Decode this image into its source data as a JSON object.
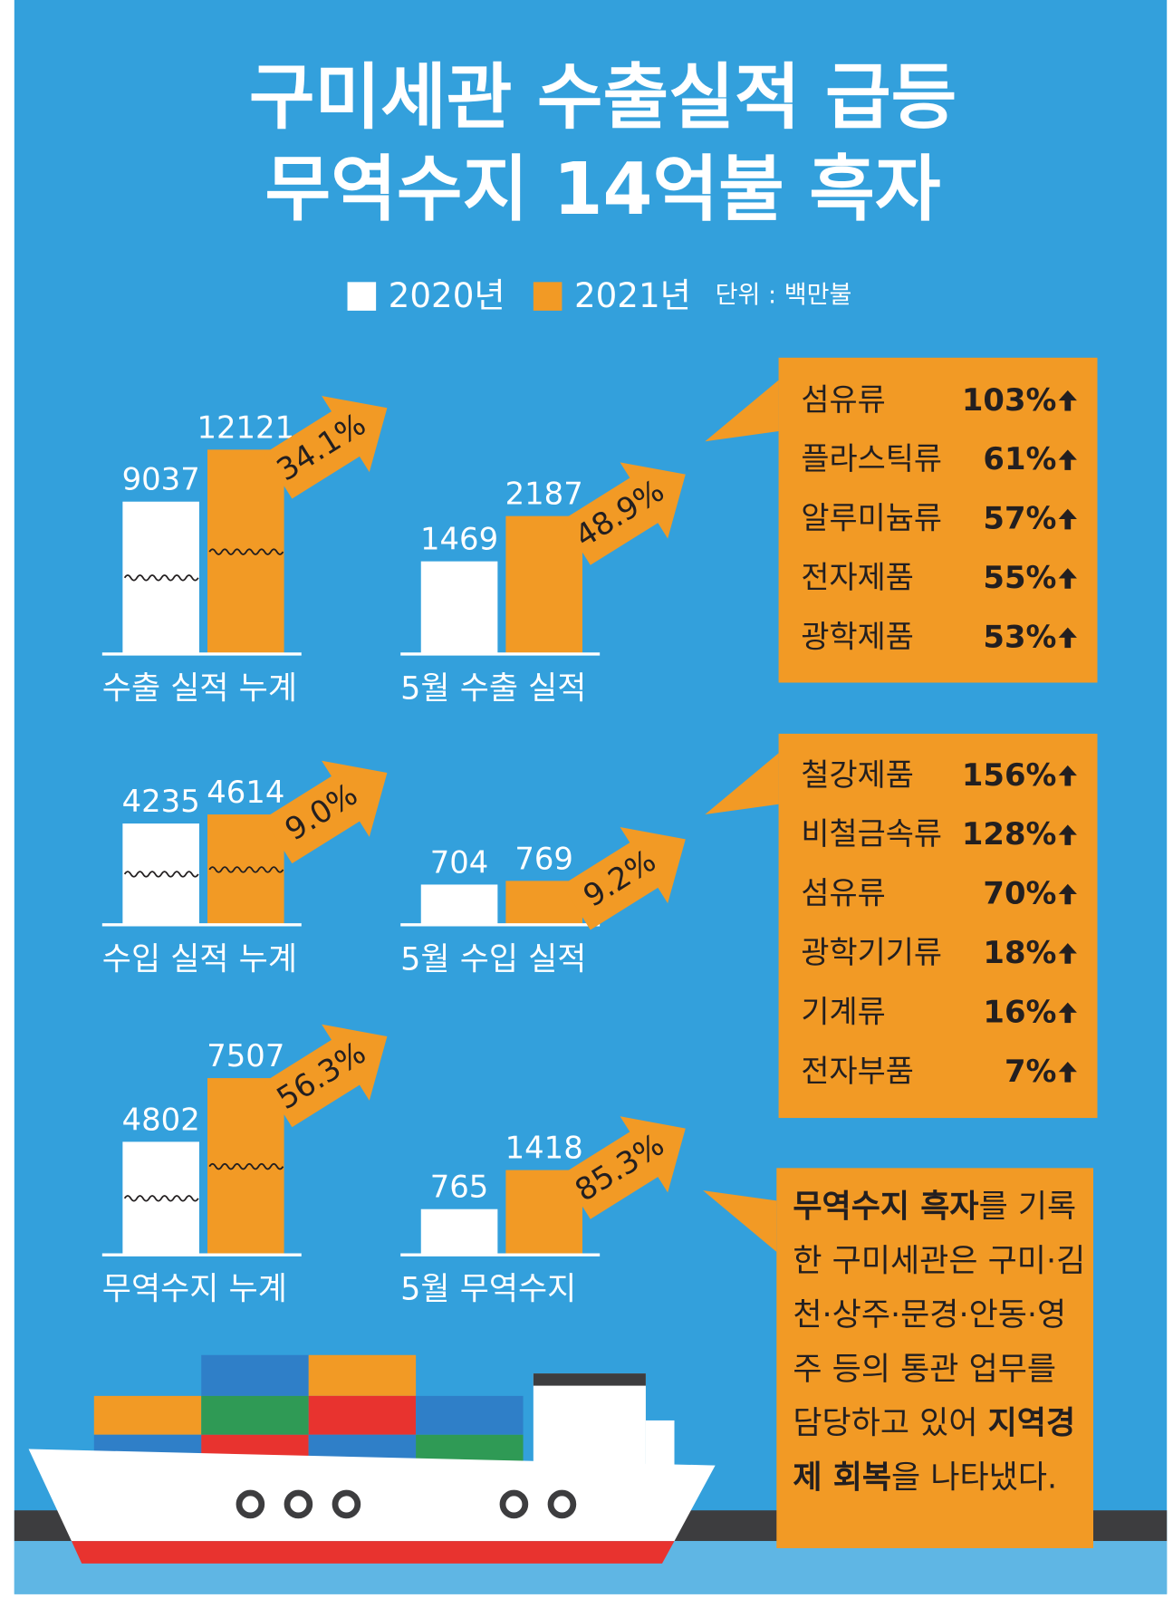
{
  "header": {
    "title_lines": [
      "구미세관 수출실적 급등",
      "무역수지 14억불 흑자"
    ]
  },
  "legend": [
    {
      "name": "2020년",
      "color": "#ffffff"
    },
    {
      "name": "2021년",
      "color": "#f29a25"
    }
  ],
  "unit": "단위 : 백만불",
  "chart_data": [
    {
      "type": "bar",
      "title": "수출 실적 누계",
      "values": [
        9037,
        12121
      ],
      "change": "34.1%",
      "broken_axis": true
    },
    {
      "type": "bar",
      "title": "5월 수출 실적",
      "values": [
        1469,
        2187
      ],
      "change": "48.9%",
      "broken_axis": false
    },
    {
      "type": "bar",
      "title": "수입 실적 누계",
      "values": [
        4235,
        4614
      ],
      "change": "9.0%",
      "broken_axis": true
    },
    {
      "type": "bar",
      "title": "5월 수입 실적",
      "values": [
        704,
        769
      ],
      "change": "9.2%",
      "broken_axis": false
    },
    {
      "type": "bar",
      "title": "무역수지 누계",
      "values": [
        4802,
        7507
      ],
      "change": "56.3%",
      "broken_axis": true
    },
    {
      "type": "bar",
      "title": "5월 무역수지",
      "values": [
        765,
        1418
      ],
      "change": "85.3%",
      "broken_axis": false
    }
  ],
  "boxes": [
    {
      "items": [
        {
          "name": "섬유류",
          "change": "103%"
        },
        {
          "name": "플라스틱류",
          "change": "61%"
        },
        {
          "name": "알루미늄류",
          "change": "57%"
        },
        {
          "name": "전자제품",
          "change": "55%"
        },
        {
          "name": "광학제품",
          "change": "53%"
        }
      ]
    },
    {
      "items": [
        {
          "name": "철강제품",
          "change": "156%"
        },
        {
          "name": "비철금속류",
          "change": "128%"
        },
        {
          "name": "섬유류",
          "change": "70%"
        },
        {
          "name": "광학기기류",
          "change": "18%"
        },
        {
          "name": "기계류",
          "change": "16%"
        },
        {
          "name": "전자부품",
          "change": "7%"
        }
      ]
    }
  ],
  "note": [
    {
      "text": "무역수지 흑자",
      "bold": true
    },
    {
      "text": "를 기록한 구미세관은 구미·김천·상주·문경·안동·영주 등의 통관 업무를 담당하고 있어 ",
      "bold": false
    },
    {
      "text": "지역경제 회복",
      "bold": true
    },
    {
      "text": "을 나타냈다.",
      "bold": false
    }
  ]
}
